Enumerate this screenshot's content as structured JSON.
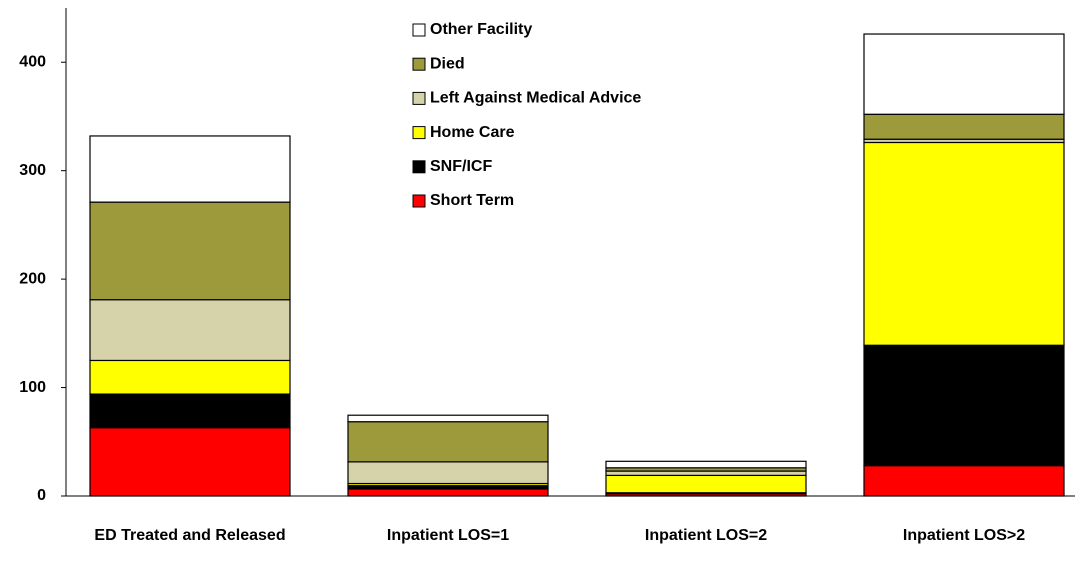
{
  "chart_data": {
    "type": "stacked_bar",
    "categories": [
      "ED Treated and Released",
      "Inpatient LOS=1",
      "Inpatient LOS=2",
      "Inpatient LOS>2"
    ],
    "series": [
      {
        "name": "Short Term",
        "color": "#ff0000",
        "values": [
          63,
          6.5,
          2,
          28
        ]
      },
      {
        "name": "SNF/ICF",
        "color": "#000000",
        "values": [
          31,
          3,
          1,
          111
        ]
      },
      {
        "name": "Home Care",
        "color": "#ffff00",
        "values": [
          31,
          2,
          16,
          187
        ]
      },
      {
        "name": "Left Against Medical Advice",
        "color": "#d6d3ab",
        "values": [
          56,
          20,
          4,
          3
        ]
      },
      {
        "name": "Died",
        "color": "#9c9a3a",
        "values": [
          90,
          37,
          3,
          23
        ]
      },
      {
        "name": "Other Facility",
        "color": "#ffffff",
        "values": [
          61,
          6,
          6,
          74
        ]
      }
    ],
    "ylim": [
      0,
      450
    ],
    "yticks": [
      0,
      100,
      200,
      300,
      400
    ],
    "grid": false,
    "legend": "top"
  }
}
